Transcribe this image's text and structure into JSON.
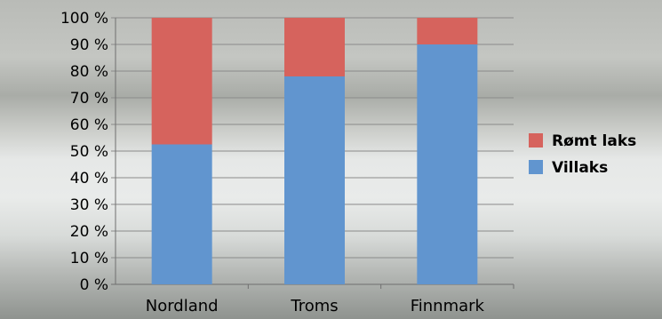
{
  "chart_data": {
    "type": "bar",
    "stacked": true,
    "categories": [
      "Nordland",
      "Troms",
      "Finnmark"
    ],
    "series": [
      {
        "name": "Villaks",
        "values": [
          52.5,
          78,
          90
        ],
        "color": "#6195cf"
      },
      {
        "name": "Rømt laks",
        "values": [
          47.5,
          22,
          10
        ],
        "color": "#d6635d"
      }
    ],
    "y_ticks": [
      "0 %",
      "10 %",
      "20 %",
      "30 %",
      "40 %",
      "50 %",
      "60 %",
      "70 %",
      "80 %",
      "90 %",
      "100 %"
    ],
    "ylim": [
      0,
      100
    ],
    "grid": true,
    "legend": {
      "position": "right",
      "entries": [
        "Rømt laks",
        "Villaks"
      ]
    }
  }
}
